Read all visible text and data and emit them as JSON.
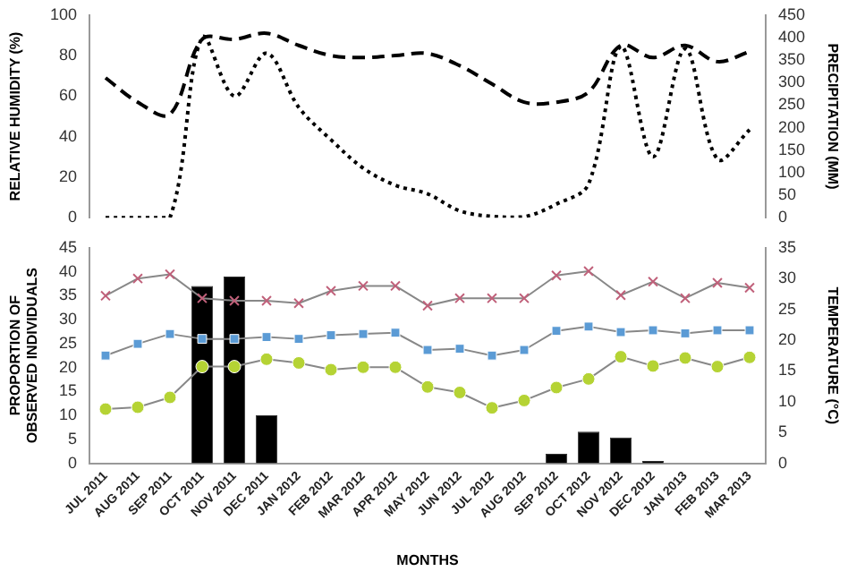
{
  "chart_data": [
    {
      "type": "line",
      "categories": [
        null,
        null,
        null,
        null,
        null,
        null,
        null,
        null,
        null,
        null,
        null,
        null,
        null,
        null,
        null,
        null,
        null,
        null,
        null,
        null,
        null
      ],
      "ylabel": "RELATIVE HUMIDITY (%)",
      "y2label": "PRECIPITATION (MM)",
      "ylim": [
        0,
        100
      ],
      "yticks": [
        0,
        20,
        40,
        60,
        80,
        100
      ],
      "y2lim": [
        0,
        450
      ],
      "y2ticks": [
        0,
        50,
        100,
        150,
        200,
        250,
        300,
        350,
        400,
        450
      ],
      "tick_labels": "y",
      "grid": false,
      "legend": false,
      "marker": "none",
      "series": [
        {
          "color": "#000000",
          "line_style": "dashed",
          "values": [
            69,
            57,
            51,
            88,
            88,
            91,
            85,
            80,
            79,
            80,
            81,
            75,
            66,
            57,
            57,
            62,
            85,
            79,
            85,
            77,
            82
          ]
        },
        {
          "color": "#000000",
          "line_style": "dotted",
          "axis": "y2",
          "values": [
            0,
            0,
            0,
            400,
            270,
            365,
            245,
            173,
            110,
            72,
            53,
            15,
            3,
            2,
            30,
            75,
            380,
            135,
            375,
            130,
            195
          ]
        }
      ]
    },
    {
      "type": "bar",
      "categories": [
        "JUL 2011",
        "AUG 2011",
        "SEP 2011",
        "OCT 2011",
        "NOV 2011",
        "DEC 2011",
        "JAN 2012",
        "FEB 2012",
        "MAR 2012",
        "APR 2012",
        "MAY 2012",
        "JUN 2012",
        "JUL 2012",
        "AUG 2012",
        "SEP 2012",
        "OCT 2012",
        "NOV 2012",
        "DEC 2012",
        "JAN 2013",
        "FEB 2013",
        "MAR 2013"
      ],
      "xlabel": "MONTHS",
      "ylabel": "PROPORTION OF OBSERVED INDIVIDUALS",
      "y2label": "TEMPERATURE (°C)",
      "ylim": [
        0,
        45
      ],
      "yticks": [
        0,
        5,
        10,
        15,
        20,
        25,
        30,
        35,
        40,
        45
      ],
      "y2lim": [
        0,
        35
      ],
      "y2ticks": [
        0,
        5,
        10,
        15,
        20,
        25,
        30,
        35
      ],
      "grid": false,
      "legend": false,
      "series": [
        {
          "color": "#000000",
          "values": [
            0,
            0,
            0,
            37,
            39,
            10,
            0,
            0,
            0,
            0,
            0,
            0,
            0,
            0,
            2,
            6.6,
            5.4,
            0.5,
            0,
            0,
            0
          ]
        },
        {
          "type": "line",
          "axis": "y2",
          "marker": "cross",
          "color": "#c0607a",
          "values": [
            27.2,
            30,
            30.7,
            26.8,
            26.4,
            26.4,
            26,
            28,
            28.8,
            28.8,
            25.6,
            26.8,
            26.8,
            26.8,
            30.5,
            31.2,
            27.3,
            29.5,
            26.8,
            29.3,
            28.5
          ]
        },
        {
          "type": "line",
          "axis": "y2",
          "marker": "square",
          "color": "#5b9bd5",
          "values": [
            17.5,
            19.4,
            21,
            20.2,
            20.2,
            20.5,
            20.2,
            20.8,
            21,
            21.2,
            18.4,
            18.6,
            17.5,
            18.4,
            21.5,
            22.2,
            21.3,
            21.6,
            21.1,
            21.6,
            21.6
          ]
        },
        {
          "type": "line",
          "axis": "y2",
          "marker": "circle",
          "color": "#b5d334",
          "values": [
            8.8,
            9.1,
            10.7,
            15.7,
            15.7,
            16.9,
            16.3,
            15.2,
            15.6,
            15.6,
            12.4,
            11.5,
            9,
            10.2,
            12.3,
            13.7,
            17.3,
            15.8,
            17.1,
            15.7,
            17.2
          ]
        }
      ]
    }
  ]
}
